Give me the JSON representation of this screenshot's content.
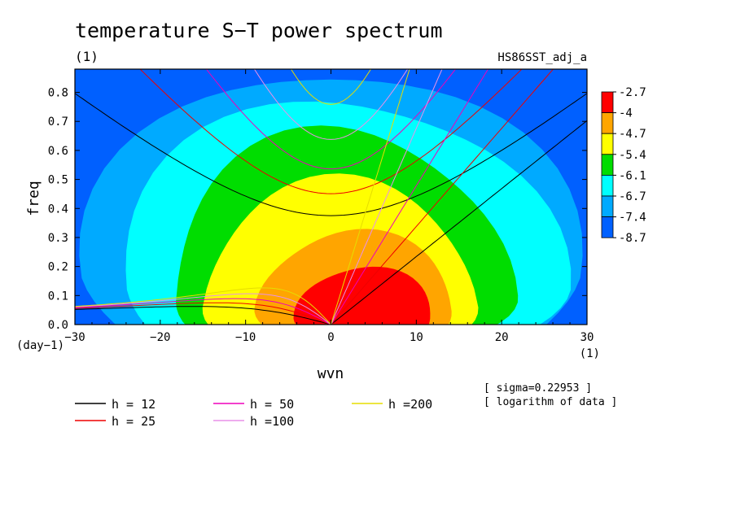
{
  "chart_data": {
    "type": "heatmap",
    "title": "temperature S−T power spectrum",
    "subtitle_left": "(1)",
    "subtitle_right": "HS86SST_adj_a",
    "xlabel": "wvn",
    "ylabel": "freq",
    "x_unit": "(1)",
    "y_unit": "(day−1)",
    "xlim": [
      -30,
      30
    ],
    "ylim": [
      0,
      0.88
    ],
    "x_ticks": [
      -30,
      -20,
      -10,
      0,
      10,
      20,
      30
    ],
    "x_tick_labels": [
      "−30",
      "−20",
      "−10",
      "0",
      "10",
      "20",
      "30"
    ],
    "y_ticks": [
      0.0,
      0.1,
      0.2,
      0.3,
      0.4,
      0.5,
      0.6,
      0.7,
      0.8
    ],
    "y_tick_labels": [
      "0.0",
      "0.1",
      "0.2",
      "0.3",
      "0.4",
      "0.5",
      "0.6",
      "0.7",
      "0.8"
    ],
    "colorbar": {
      "levels": [
        "-2.7",
        "-4",
        "-4.7",
        "-5.4",
        "-6.1",
        "-6.7",
        "-7.4",
        "-8.7"
      ],
      "colors": [
        "#ff0000",
        "#ffa500",
        "#ffff00",
        "#00dd00",
        "#00ffff",
        "#00aaff",
        "#0060ff"
      ]
    },
    "contour_fill": [
      {
        "level": -7.4,
        "color": "#00aaff",
        "center": [
          0,
          0.16
        ],
        "rx": 29.2,
        "ry_up": 0.72,
        "ry_down": 0.4
      },
      {
        "level": -6.7,
        "color": "#00ffff",
        "center": [
          1,
          0.12
        ],
        "rx": 26,
        "ry_up": 0.66,
        "ry_down": 0.3
      },
      {
        "level": -6.1,
        "color": "#00dd00",
        "center": [
          1,
          0.1
        ],
        "rx": 20,
        "ry_up": 0.57,
        "ry_down": 0.22
      },
      {
        "level": -5.4,
        "color": "#ffff00",
        "center": [
          1,
          0.08
        ],
        "rx": 16,
        "ry_up": 0.42,
        "ry_down": 0.2
      },
      {
        "level": -4.7,
        "color": "#ffa500",
        "center": [
          3,
          0.06
        ],
        "rx": 11.5,
        "ry_up": 0.26,
        "ry_down": 0.15
      },
      {
        "level": -4.0,
        "color": "#ff0000",
        "center": [
          4,
          0.02
        ],
        "rx": 8,
        "ry_up": 0.18,
        "ry_down": 0.1
      }
    ],
    "dispersion_curves": {
      "series": [
        {
          "name": "h = 12",
          "h": 12,
          "color": "#000000"
        },
        {
          "name": "h = 25",
          "h": 25,
          "color": "#ee0000"
        },
        {
          "name": "h = 50",
          "h": 50,
          "color": "#ee00bb"
        },
        {
          "name": "h =100",
          "h": 100,
          "color": "#e891e8"
        },
        {
          "name": "h =200",
          "h": 200,
          "color": "#e6dd00"
        }
      ]
    },
    "annotations": [
      "[ sigma=0.22953 ]",
      "[ logarithm of data ]"
    ],
    "grid": false,
    "legend_position": "bottom"
  }
}
